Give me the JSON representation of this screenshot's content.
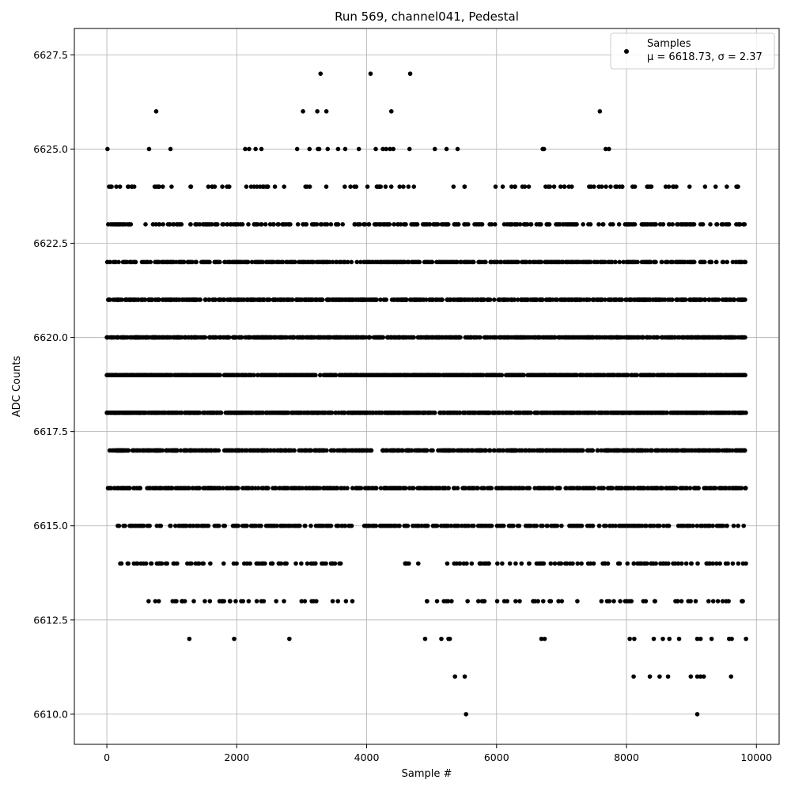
{
  "chart_data": {
    "type": "scatter",
    "title": "Run 569, channel041, Pedestal",
    "xlabel": "Sample #",
    "ylabel": "ADC Counts",
    "xlim": [
      -500,
      10350
    ],
    "ylim": [
      6609.2,
      6628.2
    ],
    "xticks": [
      0,
      2000,
      4000,
      6000,
      8000,
      10000
    ],
    "yticks": [
      6610.0,
      6612.5,
      6615.0,
      6617.5,
      6620.0,
      6622.5,
      6625.0,
      6627.5
    ],
    "grid": true,
    "legend": {
      "placement": "top-right",
      "entries": [
        {
          "name": "Samples",
          "stats": "μ = 6618.73, σ = 2.37"
        }
      ]
    },
    "marker_color": "#000000",
    "series": [
      {
        "name": "Samples",
        "points": [
          [
            10,
            6625
          ],
          [
            650,
            6625
          ],
          [
            980,
            6625
          ],
          [
            2130,
            6625
          ],
          [
            2190,
            6625
          ],
          [
            2290,
            6625
          ],
          [
            2380,
            6625
          ],
          [
            2930,
            6625
          ],
          [
            3120,
            6625
          ],
          [
            3250,
            6625
          ],
          [
            3270,
            6625
          ],
          [
            3400,
            6625
          ],
          [
            3560,
            6625
          ],
          [
            3670,
            6625
          ],
          [
            3880,
            6625
          ],
          [
            4140,
            6625
          ],
          [
            4250,
            6625
          ],
          [
            4300,
            6625
          ],
          [
            4360,
            6625
          ],
          [
            4410,
            6625
          ],
          [
            4660,
            6625
          ],
          [
            5050,
            6625
          ],
          [
            5230,
            6625
          ],
          [
            5400,
            6625
          ],
          [
            6710,
            6625
          ],
          [
            6730,
            6625
          ],
          [
            7680,
            6625
          ],
          [
            7730,
            6625
          ],
          [
            760,
            6626
          ],
          [
            3020,
            6626
          ],
          [
            3240,
            6626
          ],
          [
            3380,
            6626
          ],
          [
            4380,
            6626
          ],
          [
            7590,
            6626
          ],
          [
            3290,
            6627
          ],
          [
            4060,
            6627
          ],
          [
            4670,
            6627
          ],
          [
            5360,
            6611
          ],
          [
            5510,
            6611
          ],
          [
            8110,
            6611
          ],
          [
            8360,
            6611
          ],
          [
            8510,
            6611
          ],
          [
            8640,
            6611
          ],
          [
            8990,
            6611
          ],
          [
            9090,
            6611
          ],
          [
            9140,
            6611
          ],
          [
            9190,
            6611
          ],
          [
            9610,
            6611
          ],
          [
            5530,
            6610
          ],
          [
            9090,
            6610
          ],
          [
            1270,
            6612
          ],
          [
            1960,
            6612
          ],
          [
            2810,
            6612
          ],
          [
            4900,
            6612
          ],
          [
            5150,
            6612
          ],
          [
            5260,
            6612
          ],
          [
            5280,
            6612
          ],
          [
            6690,
            6612
          ],
          [
            6740,
            6612
          ],
          [
            8050,
            6612
          ],
          [
            8120,
            6612
          ],
          [
            8420,
            6612
          ],
          [
            8560,
            6612
          ],
          [
            8660,
            6612
          ],
          [
            8810,
            6612
          ],
          [
            9090,
            6612
          ],
          [
            9140,
            6612
          ],
          [
            9310,
            6612
          ],
          [
            9580,
            6612
          ],
          [
            9620,
            6612
          ],
          [
            9840,
            6612
          ]
        ],
        "dense_rows": [
          {
            "value": 6624,
            "count": 110,
            "ranges": [
              [
                30,
                4830
              ],
              [
                5290,
                5560
              ],
              [
                5960,
                9800
              ]
            ]
          },
          {
            "value": 6623,
            "count": 330,
            "ranges": [
              [
                0,
                9820
              ]
            ]
          },
          {
            "value": 6622,
            "count": 520,
            "ranges": [
              [
                0,
                9830
              ]
            ]
          },
          {
            "value": 6621,
            "count": 700,
            "ranges": [
              [
                0,
                9840
              ]
            ]
          },
          {
            "value": 6620,
            "count": 880,
            "ranges": [
              [
                0,
                9840
              ]
            ]
          },
          {
            "value": 6619,
            "count": 980,
            "ranges": [
              [
                0,
                9840
              ]
            ]
          },
          {
            "value": 6618,
            "count": 930,
            "ranges": [
              [
                0,
                9840
              ]
            ]
          },
          {
            "value": 6617,
            "count": 640,
            "ranges": [
              [
                0,
                9840
              ]
            ]
          },
          {
            "value": 6616,
            "count": 560,
            "ranges": [
              [
                0,
                9840
              ]
            ]
          },
          {
            "value": 6615,
            "count": 380,
            "ranges": [
              [
                0,
                9840
              ]
            ]
          },
          {
            "value": 6614,
            "count": 170,
            "ranges": [
              [
                170,
                3600
              ],
              [
                4430,
                4800
              ],
              [
                5160,
                9840
              ]
            ]
          },
          {
            "value": 6613,
            "count": 95,
            "ranges": [
              [
                400,
                3810
              ],
              [
                4900,
                9840
              ]
            ]
          }
        ]
      }
    ]
  }
}
